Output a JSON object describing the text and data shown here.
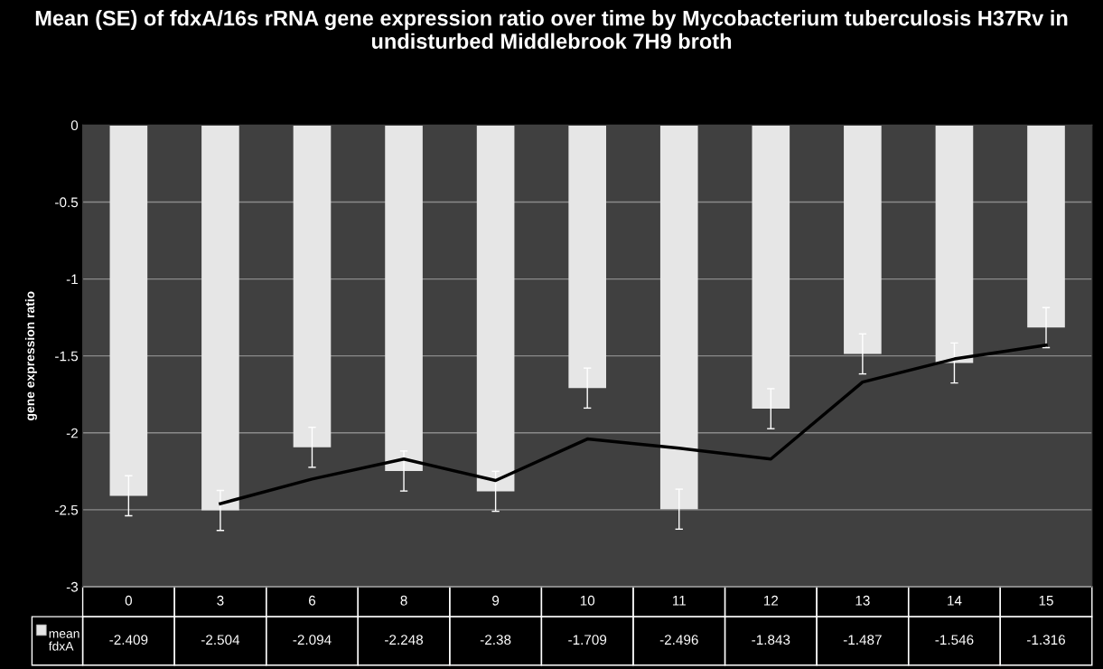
{
  "chart_data": {
    "type": "bar",
    "title": "Mean (SE) of fdxA/16s rRNA gene expression ratio over time by Mycobacterium tuberculosis H37Rv in undisturbed Middlebrook 7H9 broth",
    "ylabel": "gene expression ratio",
    "categories": [
      "0",
      "3",
      "6",
      "8",
      "9",
      "10",
      "11",
      "12",
      "13",
      "14",
      "15"
    ],
    "series": [
      {
        "name": "mean fdxA",
        "color": "#e6e6e6",
        "values": [
          -2.409,
          -2.504,
          -2.094,
          -2.248,
          -2.38,
          -1.709,
          -2.496,
          -1.843,
          -1.487,
          -1.546,
          -1.316
        ],
        "value_labels": [
          "-2.409",
          "-2.504",
          "-2.094",
          "-2.248",
          "-2.38",
          "-1.709",
          "-2.496",
          "-1.843",
          "-1.487",
          "-1.546",
          "-1.316"
        ],
        "errors": [
          0.13,
          0.13,
          0.13,
          0.13,
          0.13,
          0.13,
          0.13,
          0.13,
          0.13,
          0.13,
          0.13
        ]
      },
      {
        "type": "line",
        "color": "#000000",
        "x": [
          "3",
          "6",
          "8",
          "9",
          "10",
          "11",
          "12",
          "13",
          "14",
          "15"
        ],
        "values": [
          -2.46,
          -2.3,
          -2.17,
          -2.31,
          -2.04,
          -2.1,
          -2.17,
          -1.67,
          -1.52,
          -1.43
        ]
      }
    ],
    "ylim": [
      -3,
      0
    ],
    "yticks": [
      -3,
      -2.5,
      -2,
      -1.5,
      -1,
      -0.5,
      0
    ],
    "grid": "y",
    "legend": "bottom"
  }
}
